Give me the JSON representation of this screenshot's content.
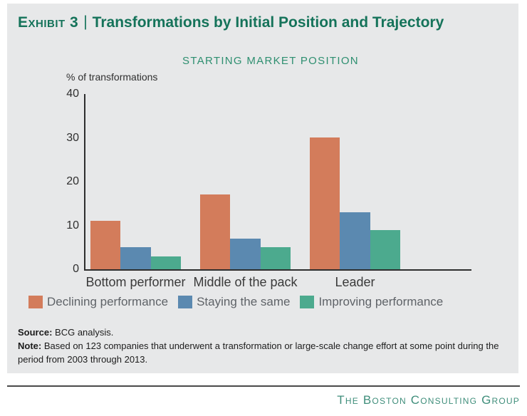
{
  "exhibit": {
    "label": "Exhibit 3",
    "separator": "|",
    "title": "Transformations by Initial Position and Trajectory"
  },
  "chart_data": {
    "type": "bar",
    "title": "STARTING MARKET POSITION",
    "ylabel": "% of transformations",
    "categories": [
      "Bottom performer",
      "Middle of the pack",
      "Leader"
    ],
    "series": [
      {
        "name": "Declining performance",
        "color": "#d37c5b",
        "values": [
          11,
          17,
          30
        ]
      },
      {
        "name": "Staying the same",
        "color": "#5b89b0",
        "values": [
          5,
          7,
          13
        ]
      },
      {
        "name": "Improving performance",
        "color": "#4caa8e",
        "values": [
          3,
          5,
          9
        ]
      }
    ],
    "ylim": [
      0,
      40
    ],
    "yticks": [
      0,
      10,
      20,
      30,
      40
    ],
    "grid": false,
    "legend_position": "bottom"
  },
  "footer": {
    "source_label": "Source:",
    "source_text": "BCG analysis.",
    "note_label": "Note:",
    "note_text": "Based on 123 companies that underwent a transformation or large-scale change effort at some point during the period from 2003 through 2013."
  },
  "branding": {
    "name": "The Boston Consulting Group"
  },
  "colors": {
    "panel_background": "#e7e8e9",
    "title_green": "#15735a",
    "subtitle_green": "#2e8f70",
    "brand_teal": "#3f8e7b",
    "axis": "#2e2e2e"
  }
}
